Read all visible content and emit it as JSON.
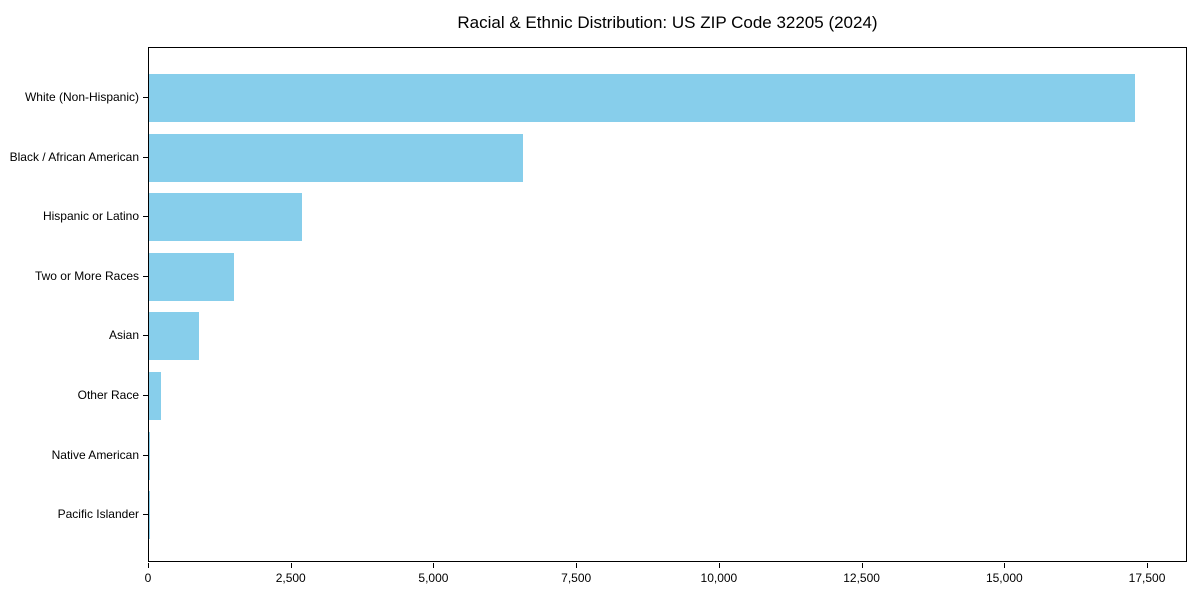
{
  "chart_data": {
    "type": "bar",
    "orientation": "horizontal",
    "title": "Racial & Ethnic Distribution: US ZIP Code 32205 (2024)",
    "xlabel": "",
    "ylabel": "",
    "categories": [
      "White (Non-Hispanic)",
      "Black / African American",
      "Hispanic or Latino",
      "Two or More Races",
      "Asian",
      "Other Race",
      "Native American",
      "Pacific Islander"
    ],
    "values": [
      17300,
      6560,
      2690,
      1500,
      885,
      215,
      25,
      10
    ],
    "xlim": [
      0,
      18200
    ],
    "x_ticks": [
      0,
      2500,
      5000,
      7500,
      10000,
      12500,
      15000,
      17500
    ],
    "x_tick_labels": [
      "0",
      "2,500",
      "5,000",
      "7,500",
      "10,000",
      "12,500",
      "15,000",
      "17,500"
    ],
    "bar_color": "#87CEEB",
    "axis_color": "#000000",
    "background_color": "#ffffff",
    "grid": false,
    "legend": null
  }
}
